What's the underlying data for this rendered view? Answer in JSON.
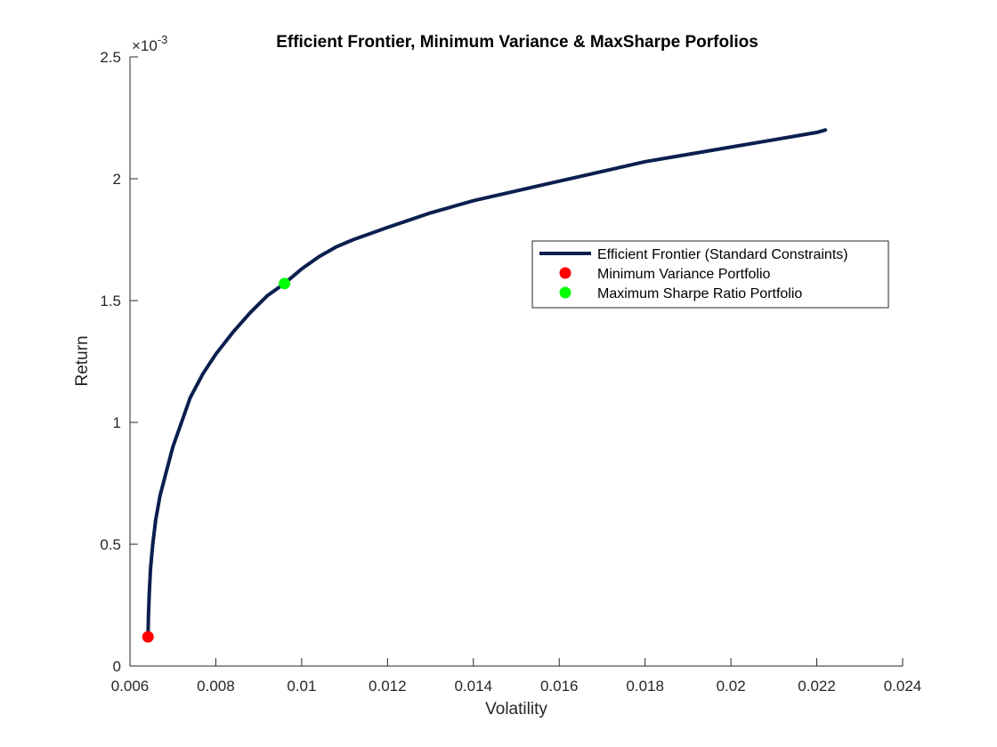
{
  "chart_data": {
    "type": "line",
    "title": "Efficient Frontier, Minimum Variance & MaxSharpe Porfolios",
    "xlabel": "Volatility",
    "ylabel": "Return",
    "xlim": [
      0.006,
      0.024
    ],
    "ylim": [
      0,
      0.0025
    ],
    "x_ticks": [
      "0.006",
      "0.008",
      "0.01",
      "0.012",
      "0.014",
      "0.016",
      "0.018",
      "0.02",
      "0.022",
      "0.024"
    ],
    "y_ticks": [
      "0",
      "0.5",
      "1",
      "1.5",
      "2",
      "2.5"
    ],
    "y_exponent_base": "×10",
    "y_exponent_power": "-3",
    "grid": false,
    "legend_position": "right-middle",
    "series": [
      {
        "name": "Efficient Frontier (Standard Constraints)",
        "color": "#0b1f4f",
        "x": [
          0.00642,
          0.00643,
          0.00645,
          0.00648,
          0.00653,
          0.0066,
          0.0067,
          0.00685,
          0.007,
          0.0072,
          0.0074,
          0.0077,
          0.008,
          0.0084,
          0.0088,
          0.0092,
          0.0096,
          0.01,
          0.0104,
          0.0108,
          0.0112,
          0.012,
          0.013,
          0.014,
          0.015,
          0.016,
          0.017,
          0.018,
          0.019,
          0.02,
          0.021,
          0.022,
          0.0222
        ],
        "y": [
          0.00012,
          0.0002,
          0.0003,
          0.0004,
          0.0005,
          0.0006,
          0.0007,
          0.0008,
          0.0009,
          0.001,
          0.0011,
          0.0012,
          0.00128,
          0.00137,
          0.00145,
          0.00152,
          0.00157,
          0.00163,
          0.00168,
          0.00172,
          0.00175,
          0.0018,
          0.00186,
          0.00191,
          0.00195,
          0.00199,
          0.00203,
          0.00207,
          0.0021,
          0.00213,
          0.00216,
          0.00219,
          0.0022
        ]
      },
      {
        "name": "Minimum Variance Portfolio",
        "color": "#ff0000",
        "x": [
          0.00642
        ],
        "y": [
          0.00012
        ]
      },
      {
        "name": "Maximum Sharpe Ratio Portfolio",
        "color": "#00ff00",
        "x": [
          0.0096
        ],
        "y": [
          0.00157
        ]
      }
    ]
  }
}
